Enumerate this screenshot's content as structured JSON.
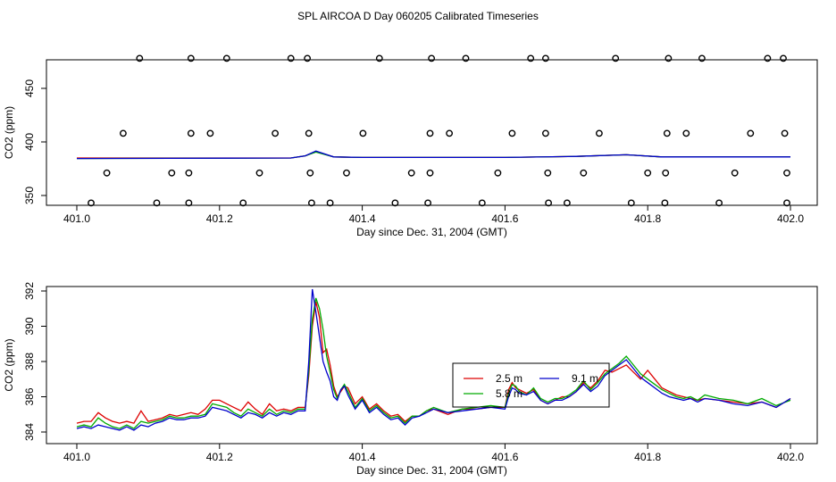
{
  "page_title": "SPL AIRCOA D  Day 060205  Calibrated Timeseries",
  "colors": {
    "red": "#dd0000",
    "green": "#00aa00",
    "blue": "#0000cc"
  },
  "chart_data": [
    {
      "id": "top",
      "type": "scatter",
      "xlabel": "Day since Dec. 31, 2004 (GMT)",
      "ylabel": "CO2 (ppm)",
      "xlim": [
        401.0,
        402.0
      ],
      "ylim": [
        330,
        480
      ],
      "x_ticks": [
        "401.0",
        "401.2",
        "401.4",
        "401.6",
        "401.8",
        "402.0"
      ],
      "y_ticks": [
        "350",
        "400",
        "450"
      ],
      "scatter_series": [
        {
          "y": 478,
          "x": [
            401.088,
            401.16,
            401.21,
            401.3,
            401.323,
            401.424,
            401.497,
            401.545,
            401.636,
            401.657,
            401.755,
            401.829,
            401.876,
            401.968,
            401.99
          ]
        },
        {
          "y": 408,
          "x": [
            401.065,
            401.16,
            401.187,
            401.278,
            401.325,
            401.401,
            401.495,
            401.522,
            401.61,
            401.657,
            401.732,
            401.827,
            401.854,
            401.944,
            401.992
          ]
        },
        {
          "y": 371,
          "x": [
            401.042,
            401.133,
            401.157,
            401.256,
            401.327,
            401.378,
            401.469,
            401.495,
            401.59,
            401.66,
            401.71,
            401.8,
            401.825,
            401.922,
            401.995
          ]
        },
        {
          "y": 343,
          "x": [
            401.02,
            401.112,
            401.157,
            401.233,
            401.329,
            401.355,
            401.446,
            401.492,
            401.568,
            401.661,
            401.687,
            401.777,
            401.824,
            401.9,
            401.995
          ]
        }
      ],
      "line_series": [
        {
          "color": "red",
          "x": [
            401.0,
            401.3,
            401.32,
            401.335,
            401.36,
            401.4,
            401.6,
            401.7,
            401.77,
            401.82,
            402.0
          ],
          "y": [
            385,
            385,
            387,
            391,
            386,
            385.5,
            385.5,
            386.5,
            388,
            386,
            386
          ]
        },
        {
          "color": "green",
          "x": [
            401.0,
            401.3,
            401.32,
            401.335,
            401.36,
            401.4,
            401.6,
            401.7,
            401.77,
            401.82,
            402.0
          ],
          "y": [
            384.5,
            385,
            387,
            390.5,
            386,
            385.5,
            385.5,
            386.5,
            388,
            386,
            386
          ]
        },
        {
          "color": "blue",
          "x": [
            401.0,
            401.3,
            401.32,
            401.335,
            401.36,
            401.4,
            401.6,
            401.7,
            401.77,
            401.82,
            402.0
          ],
          "y": [
            384.5,
            385,
            387,
            391.5,
            386,
            385.5,
            385.5,
            386.5,
            388,
            386,
            386
          ]
        }
      ]
    },
    {
      "id": "bottom",
      "type": "line",
      "xlabel": "Day since Dec. 31, 2004 (GMT)",
      "ylabel": "CO2 (ppm)",
      "xlim": [
        401.0,
        402.0
      ],
      "ylim": [
        383.8,
        392.4
      ],
      "x_ticks": [
        "401.0",
        "401.2",
        "401.4",
        "401.6",
        "401.8",
        "402.0"
      ],
      "y_ticks": [
        "384",
        "386",
        "388",
        "390",
        "392"
      ],
      "legend": {
        "position": "center-right",
        "entries": [
          {
            "label": "2.5 m",
            "color": "red"
          },
          {
            "label": "9.1 m",
            "color": "blue"
          },
          {
            "label": "5.8 m",
            "color": "green"
          }
        ]
      },
      "series": [
        {
          "name": "2.5 m",
          "color": "red",
          "x": [
            401.0,
            401.01,
            401.02,
            401.03,
            401.04,
            401.05,
            401.06,
            401.07,
            401.08,
            401.09,
            401.1,
            401.11,
            401.12,
            401.13,
            401.14,
            401.15,
            401.16,
            401.17,
            401.18,
            401.19,
            401.2,
            401.21,
            401.22,
            401.23,
            401.24,
            401.25,
            401.26,
            401.27,
            401.28,
            401.29,
            401.3,
            401.31,
            401.32,
            401.325,
            401.33,
            401.335,
            401.34,
            401.345,
            401.35,
            401.355,
            401.36,
            401.365,
            401.37,
            401.375,
            401.38,
            401.39,
            401.4,
            401.41,
            401.42,
            401.43,
            401.44,
            401.45,
            401.46,
            401.47,
            401.48,
            401.49,
            401.5,
            401.52,
            401.54,
            401.56,
            401.58,
            401.6,
            401.605,
            401.61,
            401.615,
            401.62,
            401.63,
            401.64,
            401.65,
            401.66,
            401.67,
            401.68,
            401.69,
            401.7,
            401.71,
            401.72,
            401.73,
            401.74,
            401.75,
            401.76,
            401.77,
            401.78,
            401.79,
            401.8,
            401.81,
            401.82,
            401.83,
            401.84,
            401.85,
            401.86,
            401.87,
            401.88,
            401.9,
            401.92,
            401.94,
            401.96,
            401.98,
            402.0
          ],
          "y": [
            384.5,
            384.6,
            384.6,
            385.1,
            384.8,
            384.6,
            384.5,
            384.6,
            384.5,
            385.2,
            384.6,
            384.7,
            384.8,
            385.0,
            384.9,
            385.0,
            385.1,
            385.0,
            385.3,
            385.8,
            385.8,
            385.6,
            385.4,
            385.2,
            385.7,
            385.3,
            385.0,
            385.6,
            385.2,
            385.3,
            385.2,
            385.4,
            385.4,
            387.2,
            390.0,
            391.4,
            390.5,
            388.5,
            388.7,
            387.8,
            386.6,
            386.0,
            386.3,
            386.6,
            386.5,
            385.6,
            386.0,
            385.3,
            385.6,
            385.2,
            384.9,
            385.0,
            384.6,
            384.9,
            384.9,
            385.2,
            385.3,
            385.0,
            385.3,
            385.3,
            385.4,
            385.4,
            386.4,
            386.8,
            386.5,
            386.4,
            386.2,
            386.4,
            385.8,
            385.6,
            385.8,
            386.0,
            386.0,
            386.3,
            386.8,
            386.5,
            386.9,
            387.5,
            387.4,
            387.6,
            387.8,
            387.4,
            387.0,
            387.5,
            387.0,
            386.5,
            386.3,
            386.1,
            386.0,
            385.9,
            385.8,
            385.9,
            385.8,
            385.7,
            385.6,
            385.7,
            385.4,
            385.9
          ]
        },
        {
          "name": "5.8 m",
          "color": "green",
          "x": [
            401.0,
            401.01,
            401.02,
            401.03,
            401.04,
            401.05,
            401.06,
            401.07,
            401.08,
            401.09,
            401.1,
            401.11,
            401.12,
            401.13,
            401.14,
            401.15,
            401.16,
            401.17,
            401.18,
            401.19,
            401.2,
            401.21,
            401.22,
            401.23,
            401.24,
            401.25,
            401.26,
            401.27,
            401.28,
            401.29,
            401.3,
            401.31,
            401.32,
            401.325,
            401.33,
            401.335,
            401.34,
            401.345,
            401.35,
            401.355,
            401.36,
            401.365,
            401.37,
            401.375,
            401.38,
            401.39,
            401.4,
            401.41,
            401.42,
            401.43,
            401.44,
            401.45,
            401.46,
            401.47,
            401.48,
            401.49,
            401.5,
            401.52,
            401.54,
            401.56,
            401.58,
            401.6,
            401.605,
            401.61,
            401.615,
            401.62,
            401.63,
            401.64,
            401.65,
            401.66,
            401.67,
            401.68,
            401.69,
            401.7,
            401.71,
            401.72,
            401.73,
            401.74,
            401.75,
            401.76,
            401.77,
            401.78,
            401.79,
            401.8,
            401.81,
            401.82,
            401.83,
            401.84,
            401.85,
            401.86,
            401.87,
            401.88,
            401.9,
            401.92,
            401.94,
            401.96,
            401.98,
            402.0
          ],
          "y": [
            384.3,
            384.4,
            384.3,
            384.8,
            384.5,
            384.3,
            384.2,
            384.4,
            384.2,
            384.6,
            384.5,
            384.6,
            384.7,
            384.9,
            384.8,
            384.8,
            384.9,
            384.9,
            385.0,
            385.6,
            385.5,
            385.4,
            385.1,
            384.9,
            385.3,
            385.1,
            384.9,
            385.3,
            385.0,
            385.2,
            385.1,
            385.3,
            385.3,
            387.5,
            390.4,
            391.6,
            391.0,
            389.8,
            388.3,
            387.4,
            386.4,
            385.9,
            386.4,
            386.7,
            386.3,
            385.4,
            385.9,
            385.2,
            385.5,
            385.1,
            384.8,
            384.9,
            384.5,
            384.9,
            384.9,
            385.2,
            385.4,
            385.1,
            385.3,
            385.4,
            385.5,
            385.4,
            386.2,
            386.7,
            386.6,
            386.3,
            386.1,
            386.5,
            385.9,
            385.7,
            385.9,
            385.9,
            386.1,
            386.4,
            386.9,
            386.4,
            386.8,
            387.3,
            387.6,
            387.9,
            388.3,
            387.8,
            387.3,
            387.0,
            386.7,
            386.4,
            386.2,
            386.0,
            385.9,
            386.0,
            385.8,
            386.1,
            385.9,
            385.8,
            385.6,
            385.9,
            385.5,
            385.8
          ]
        },
        {
          "name": "9.1 m",
          "color": "blue",
          "x": [
            401.0,
            401.01,
            401.02,
            401.03,
            401.04,
            401.05,
            401.06,
            401.07,
            401.08,
            401.09,
            401.1,
            401.11,
            401.12,
            401.13,
            401.14,
            401.15,
            401.16,
            401.17,
            401.18,
            401.19,
            401.2,
            401.21,
            401.22,
            401.23,
            401.24,
            401.25,
            401.26,
            401.27,
            401.28,
            401.29,
            401.3,
            401.31,
            401.32,
            401.325,
            401.33,
            401.335,
            401.34,
            401.345,
            401.35,
            401.355,
            401.36,
            401.365,
            401.37,
            401.375,
            401.38,
            401.39,
            401.4,
            401.41,
            401.42,
            401.43,
            401.44,
            401.45,
            401.46,
            401.47,
            401.48,
            401.49,
            401.5,
            401.52,
            401.54,
            401.56,
            401.58,
            401.6,
            401.605,
            401.61,
            401.615,
            401.62,
            401.63,
            401.64,
            401.65,
            401.66,
            401.67,
            401.68,
            401.69,
            401.7,
            401.71,
            401.72,
            401.73,
            401.74,
            401.75,
            401.76,
            401.77,
            401.78,
            401.79,
            401.8,
            401.81,
            401.82,
            401.83,
            401.84,
            401.85,
            401.86,
            401.87,
            401.88,
            401.9,
            401.92,
            401.94,
            401.96,
            401.98,
            402.0
          ],
          "y": [
            384.2,
            384.3,
            384.2,
            384.4,
            384.3,
            384.2,
            384.1,
            384.3,
            384.1,
            384.4,
            384.3,
            384.5,
            384.6,
            384.8,
            384.7,
            384.7,
            384.8,
            384.8,
            384.9,
            385.4,
            385.3,
            385.2,
            385.0,
            384.8,
            385.1,
            385.0,
            384.8,
            385.1,
            384.9,
            385.1,
            385.0,
            385.2,
            385.2,
            388.0,
            392.1,
            390.8,
            389.4,
            388.0,
            387.4,
            386.9,
            386.0,
            385.8,
            386.4,
            386.6,
            386.1,
            385.3,
            385.8,
            385.1,
            385.4,
            385.0,
            384.7,
            384.8,
            384.4,
            384.8,
            384.9,
            385.1,
            385.3,
            385.1,
            385.2,
            385.3,
            385.4,
            385.3,
            386.0,
            386.5,
            386.4,
            386.2,
            386.1,
            386.3,
            385.8,
            385.6,
            385.8,
            385.8,
            386.0,
            386.3,
            386.7,
            386.3,
            386.6,
            387.2,
            387.5,
            387.8,
            388.1,
            387.6,
            387.1,
            386.8,
            386.5,
            386.2,
            386.0,
            385.9,
            385.8,
            385.9,
            385.7,
            385.9,
            385.8,
            385.6,
            385.5,
            385.7,
            385.4,
            385.9
          ]
        }
      ]
    }
  ]
}
